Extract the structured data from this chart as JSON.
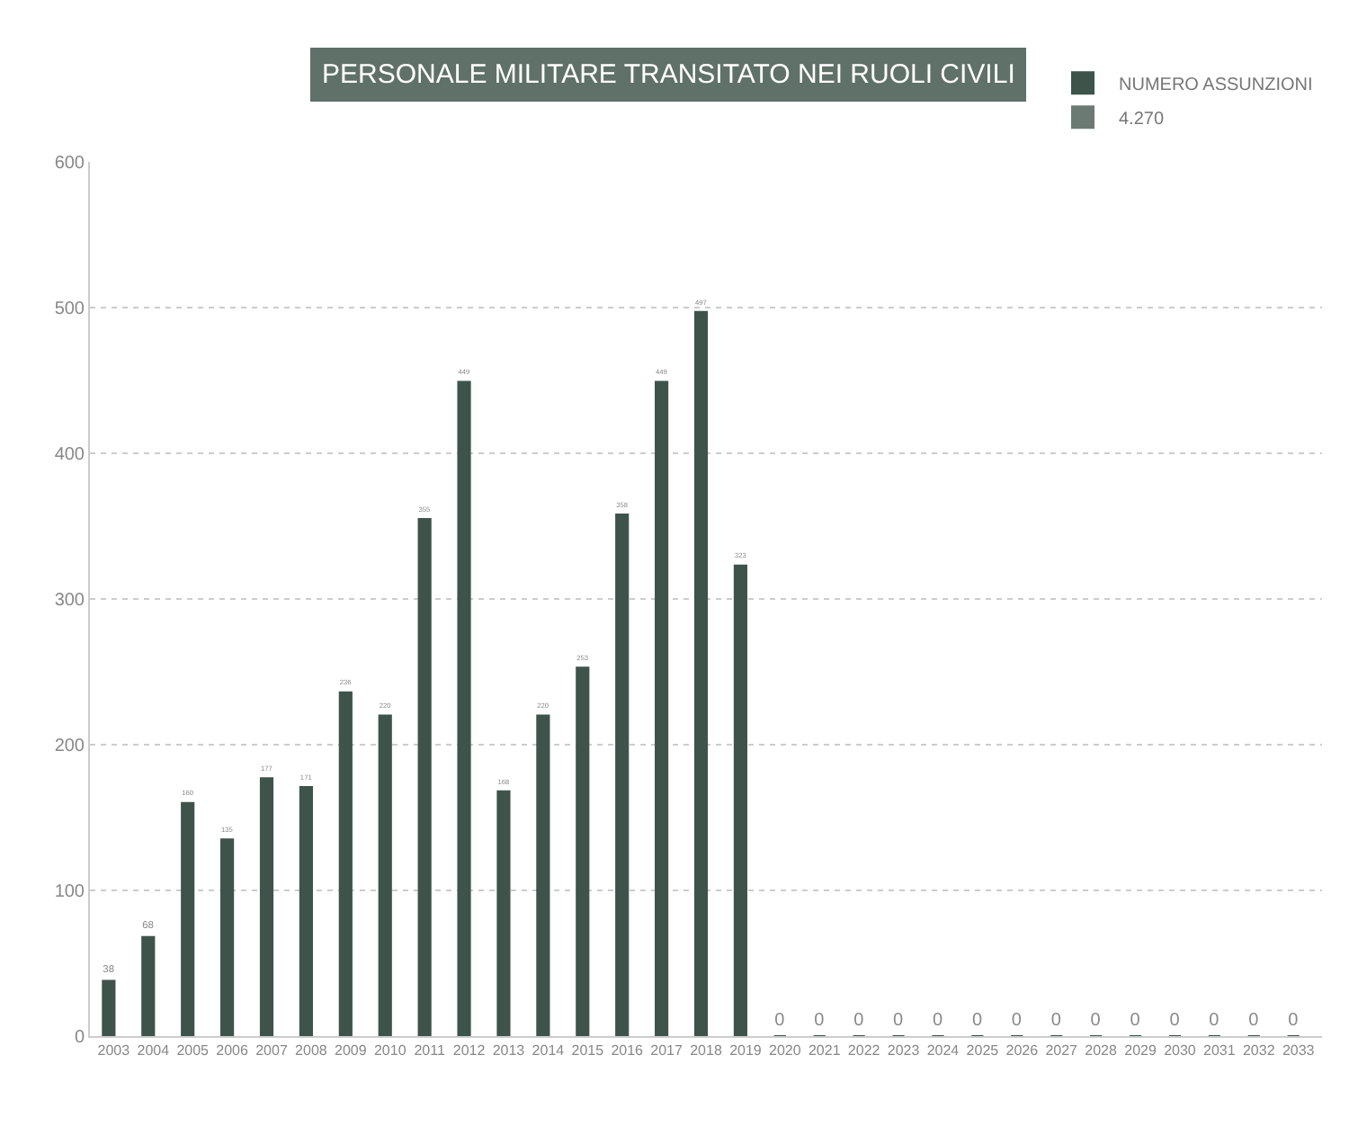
{
  "chart_data": {
    "type": "bar",
    "title": "PERSONALE MILITARE TRANSITATO NEI RUOLI CIVILI",
    "categories": [
      "2003",
      "2004",
      "2005",
      "2006",
      "2007",
      "2008",
      "2009",
      "2010",
      "2011",
      "2012",
      "2013",
      "2014",
      "2015",
      "2016",
      "2017",
      "2018",
      "2019",
      "2020",
      "2021",
      "2022",
      "2023",
      "2024",
      "2025",
      "2026",
      "2027",
      "2028",
      "2029",
      "2030",
      "2031",
      "2032",
      "2033"
    ],
    "series": [
      {
        "name": "NUMERO ASSUNZIONI",
        "color": "#3e544b",
        "values": [
          38,
          68,
          160,
          135,
          177,
          171,
          236,
          220,
          355,
          449,
          168,
          220,
          253,
          358,
          449,
          497,
          323,
          0,
          0,
          0,
          0,
          0,
          0,
          0,
          0,
          0,
          0,
          0,
          0,
          0,
          0
        ]
      },
      {
        "name": "4.270",
        "color": "#6b7a73",
        "values": [
          null,
          null,
          null,
          null,
          null,
          null,
          null,
          null,
          null,
          null,
          null,
          null,
          null,
          null,
          null,
          null,
          null,
          null,
          null,
          null,
          null,
          null,
          null,
          null,
          null,
          null,
          null,
          null,
          null,
          null,
          null
        ]
      }
    ],
    "ylim": [
      0,
      600
    ],
    "yticks": [
      0,
      100,
      200,
      300,
      400,
      500,
      600
    ],
    "grid": "y",
    "legend": "top right",
    "data_labels": true
  }
}
